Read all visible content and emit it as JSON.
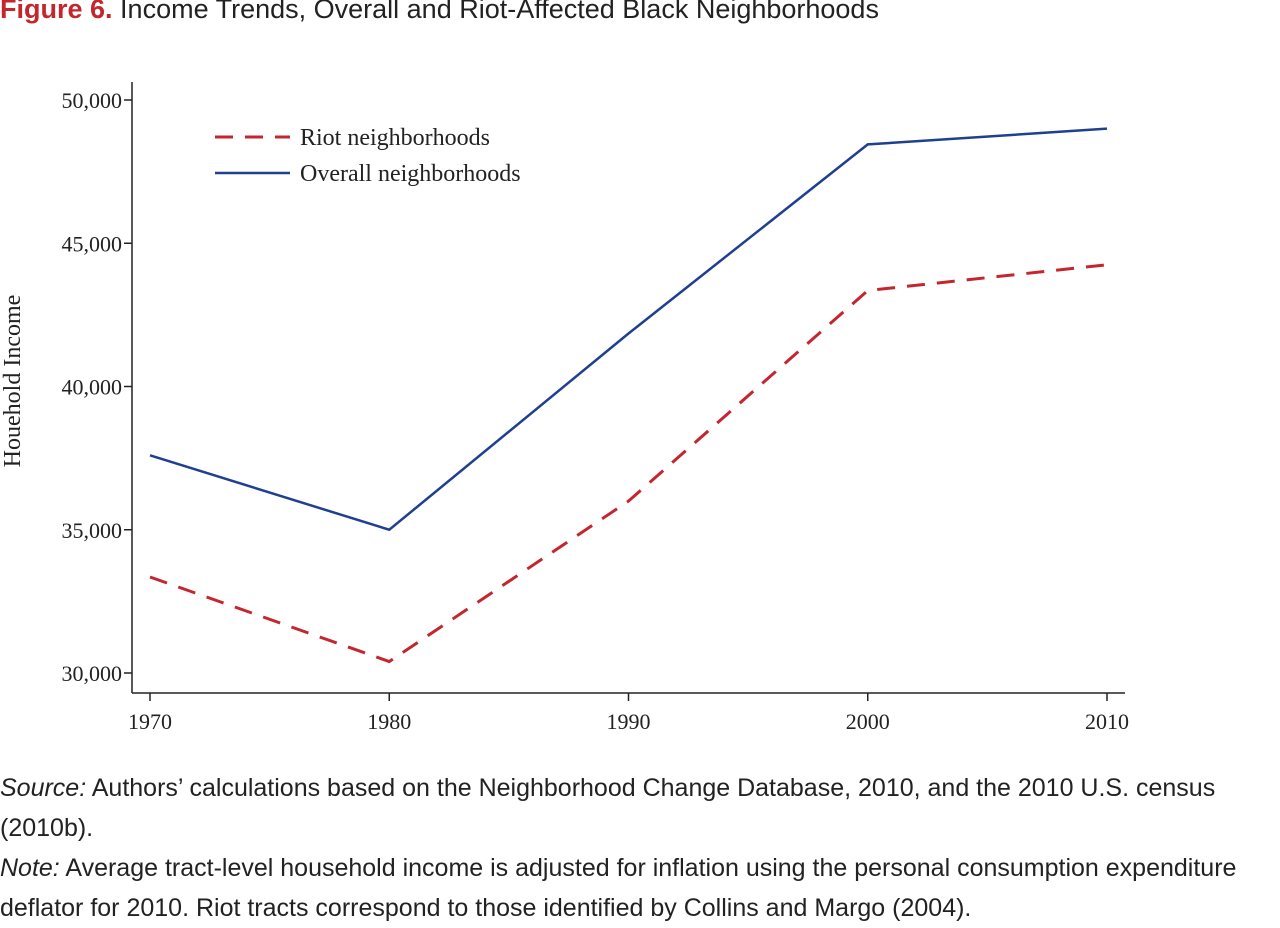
{
  "figure": {
    "label": "Figure 6.",
    "title": "Income Trends, Overall and Riot-Affected Black Neighborhoods"
  },
  "chart_data": {
    "type": "line",
    "title": "Income Trends, Overall and Riot-Affected Black Neighborhoods",
    "x": [
      1970,
      1980,
      1990,
      2000,
      2010
    ],
    "x_tick_labels": [
      "1970",
      "1980",
      "1990",
      "2000",
      "2010"
    ],
    "xlabel": "",
    "ylabel": "Houehold Income",
    "ylim": [
      29500,
      50500
    ],
    "y_ticks": [
      30000,
      35000,
      40000,
      45000,
      50000
    ],
    "y_tick_labels": [
      "30,000",
      "35,000",
      "40,000",
      "45,000",
      "50,000"
    ],
    "grid": false,
    "legend_position": "top-left",
    "series": [
      {
        "name": "Riot neighborhoods",
        "values": [
          33350,
          30400,
          36000,
          43350,
          44250
        ],
        "color": "#c4262e",
        "style": "dashed"
      },
      {
        "name": "Overall neighborhoods",
        "values": [
          37600,
          35000,
          41850,
          48450,
          49000
        ],
        "color": "#1f3f8f",
        "style": "solid"
      }
    ]
  },
  "source": {
    "label": "Source:",
    "text": "Authors’ calculations based on the Neighborhood Change Database, 2010, and the 2010 U.S. census (2010b)."
  },
  "note": {
    "label": "Note:",
    "text": "Average tract-level household income is adjusted for inflation using the personal consumption expenditure deflator for 2010. Riot tracts correspond to those identified by Collins and Margo (2004)."
  }
}
